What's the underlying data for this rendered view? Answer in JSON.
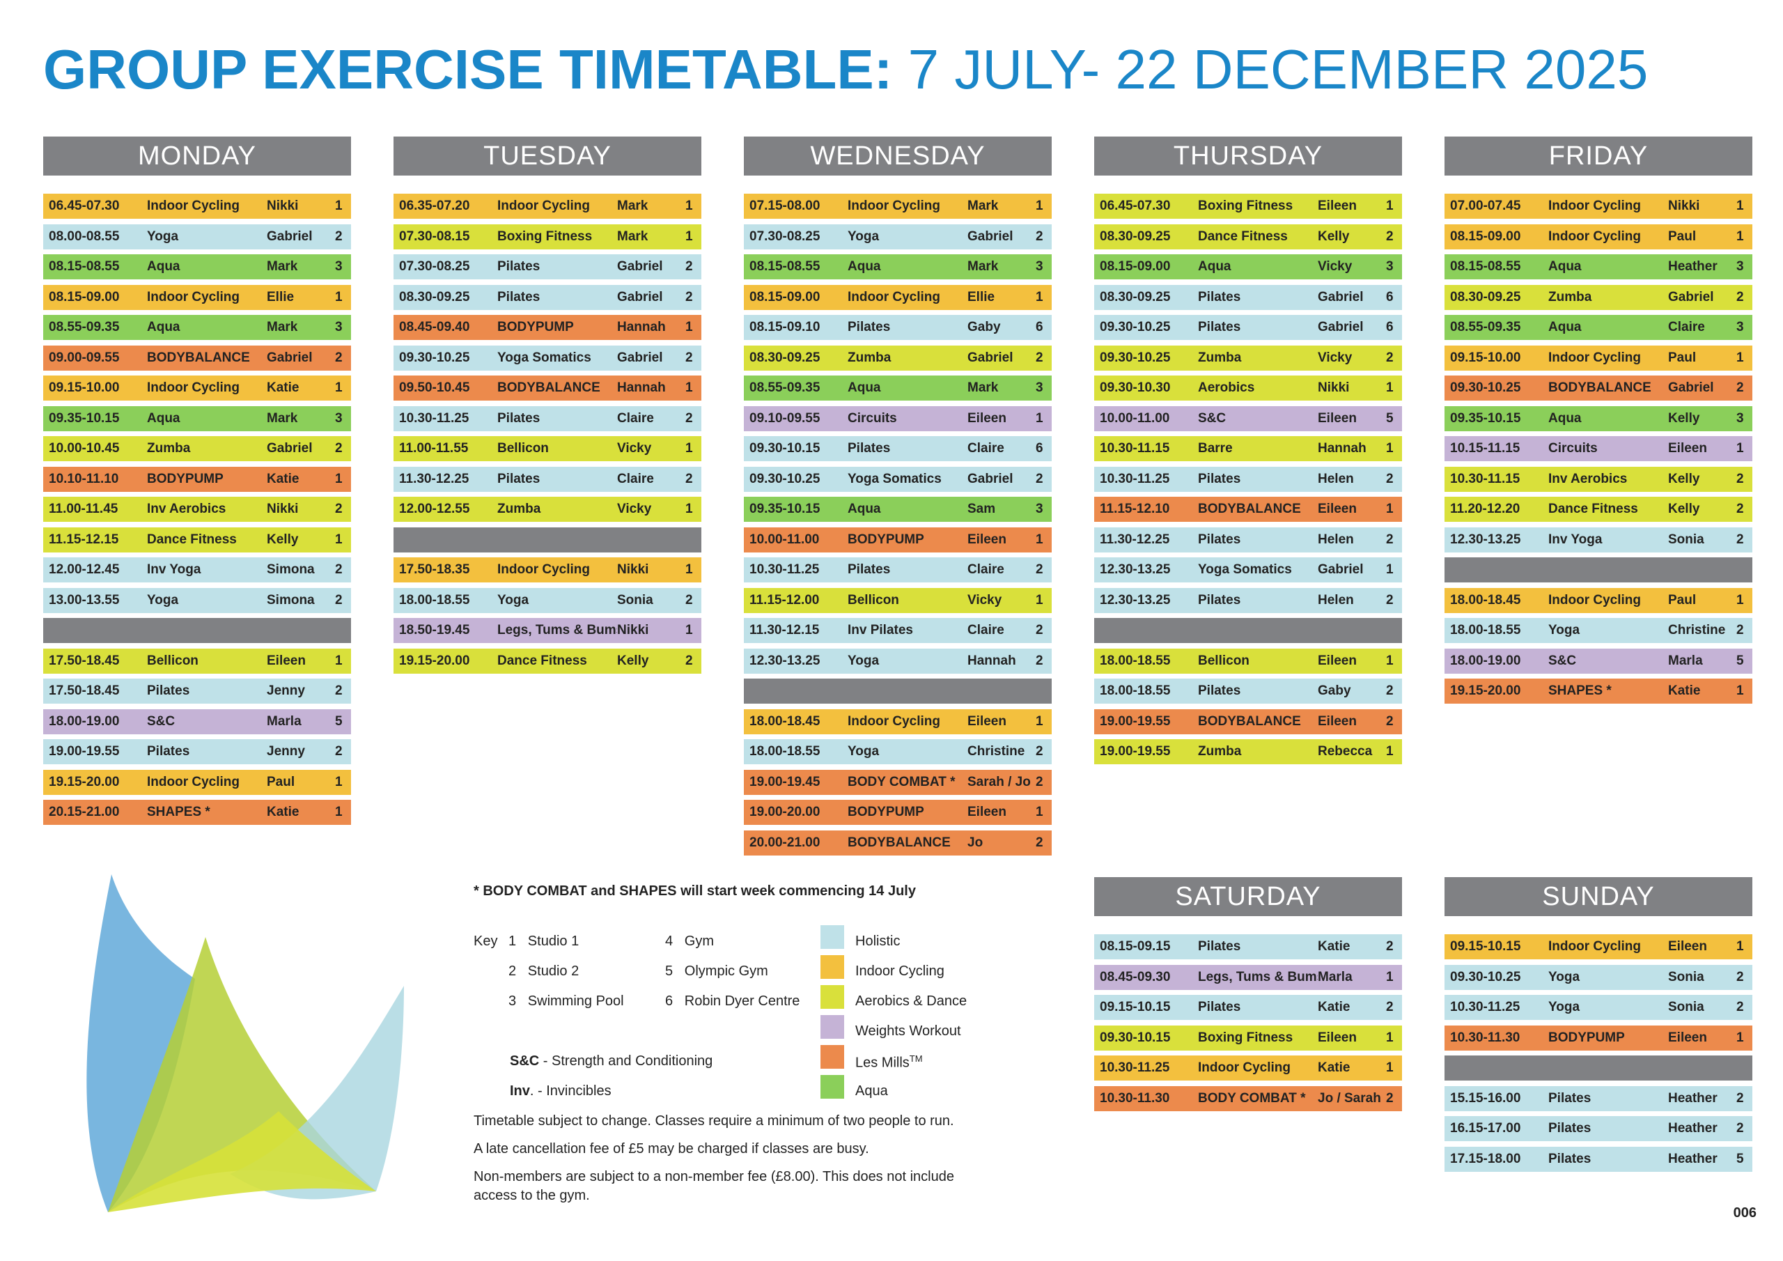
{
  "title": {
    "bold": "GROUP EXERCISE TIMETABLE:",
    "light": " 7 JULY- 22 DECEMBER 2025"
  },
  "categories": {
    "holistic": "#bfe1e8",
    "cycling": "#f3c03e",
    "aerobics": "#d9e03b",
    "weights": "#c5b3d6",
    "lesmills": "#ec8a4c",
    "aqua": "#8bcf5a",
    "header": "#808184"
  },
  "days": {
    "monday": {
      "name": "MONDAY",
      "rows": [
        {
          "time": "06.45-07.30",
          "cls": "Indoor Cycling",
          "instructor": "Nikki",
          "studio": "1",
          "cat": "cycling"
        },
        {
          "time": "08.00-08.55",
          "cls": "Yoga",
          "instructor": "Gabriel",
          "studio": "2",
          "cat": "holistic"
        },
        {
          "time": "08.15-08.55",
          "cls": "Aqua",
          "instructor": "Mark",
          "studio": "3",
          "cat": "aqua"
        },
        {
          "time": "08.15-09.00",
          "cls": "Indoor Cycling",
          "instructor": "Ellie",
          "studio": "1",
          "cat": "cycling"
        },
        {
          "time": "08.55-09.35",
          "cls": "Aqua",
          "instructor": "Mark",
          "studio": "3",
          "cat": "aqua"
        },
        {
          "time": "09.00-09.55",
          "cls": "BODYBALANCE",
          "instructor": "Gabriel",
          "studio": "2",
          "cat": "lesmills"
        },
        {
          "time": "09.15-10.00",
          "cls": "Indoor Cycling",
          "instructor": "Katie",
          "studio": "1",
          "cat": "cycling"
        },
        {
          "time": "09.35-10.15",
          "cls": "Aqua",
          "instructor": "Mark",
          "studio": "3",
          "cat": "aqua"
        },
        {
          "time": "10.00-10.45",
          "cls": "Zumba",
          "instructor": "Gabriel",
          "studio": "2",
          "cat": "aerobics"
        },
        {
          "time": "10.10-11.10",
          "cls": "BODYPUMP",
          "instructor": "Katie",
          "studio": "1",
          "cat": "lesmills"
        },
        {
          "time": "11.00-11.45",
          "cls": "Inv Aerobics",
          "instructor": "Nikki",
          "studio": "2",
          "cat": "aerobics"
        },
        {
          "time": "11.15-12.15",
          "cls": "Dance Fitness",
          "instructor": "Kelly",
          "studio": "1",
          "cat": "aerobics"
        },
        {
          "time": "12.00-12.45",
          "cls": "Inv Yoga",
          "instructor": "Simona",
          "studio": "2",
          "cat": "holistic"
        },
        {
          "time": "13.00-13.55",
          "cls": "Yoga",
          "instructor": "Simona",
          "studio": "2",
          "cat": "holistic"
        },
        {
          "gap": true
        },
        {
          "time": "17.50-18.45",
          "cls": "Bellicon",
          "instructor": "Eileen",
          "studio": "1",
          "cat": "aerobics"
        },
        {
          "time": "17.50-18.45",
          "cls": "Pilates",
          "instructor": "Jenny",
          "studio": "2",
          "cat": "holistic"
        },
        {
          "time": "18.00-19.00",
          "cls": "S&C",
          "instructor": "Marla",
          "studio": "5",
          "cat": "weights"
        },
        {
          "time": "19.00-19.55",
          "cls": "Pilates",
          "instructor": "Jenny",
          "studio": "2",
          "cat": "holistic"
        },
        {
          "time": "19.15-20.00",
          "cls": "Indoor Cycling",
          "instructor": "Paul",
          "studio": "1",
          "cat": "cycling"
        },
        {
          "time": "20.15-21.00",
          "cls": "SHAPES *",
          "instructor": "Katie",
          "studio": "1",
          "cat": "lesmills"
        }
      ]
    },
    "tuesday": {
      "name": "TUESDAY",
      "rows": [
        {
          "time": "06.35-07.20",
          "cls": "Indoor Cycling",
          "instructor": "Mark",
          "studio": "1",
          "cat": "cycling"
        },
        {
          "time": "07.30-08.15",
          "cls": "Boxing Fitness",
          "instructor": "Mark",
          "studio": "1",
          "cat": "aerobics"
        },
        {
          "time": "07.30-08.25",
          "cls": "Pilates",
          "instructor": "Gabriel",
          "studio": "2",
          "cat": "holistic"
        },
        {
          "time": "08.30-09.25",
          "cls": "Pilates",
          "instructor": "Gabriel",
          "studio": "2",
          "cat": "holistic"
        },
        {
          "time": "08.45-09.40",
          "cls": "BODYPUMP",
          "instructor": "Hannah",
          "studio": "1",
          "cat": "lesmills"
        },
        {
          "time": "09.30-10.25",
          "cls": "Yoga Somatics",
          "instructor": "Gabriel",
          "studio": "2",
          "cat": "holistic"
        },
        {
          "time": "09.50-10.45",
          "cls": "BODYBALANCE",
          "instructor": "Hannah",
          "studio": "1",
          "cat": "lesmills"
        },
        {
          "time": "10.30-11.25",
          "cls": "Pilates",
          "instructor": "Claire",
          "studio": "2",
          "cat": "holistic"
        },
        {
          "time": "11.00-11.55",
          "cls": "Bellicon",
          "instructor": "Vicky",
          "studio": "1",
          "cat": "aerobics"
        },
        {
          "time": "11.30-12.25",
          "cls": "Pilates",
          "instructor": "Claire",
          "studio": "2",
          "cat": "holistic"
        },
        {
          "time": "12.00-12.55",
          "cls": "Zumba",
          "instructor": "Vicky",
          "studio": "1",
          "cat": "aerobics"
        },
        {
          "gap": true
        },
        {
          "time": "17.50-18.35",
          "cls": "Indoor Cycling",
          "instructor": "Nikki",
          "studio": "1",
          "cat": "cycling"
        },
        {
          "time": "18.00-18.55",
          "cls": "Yoga",
          "instructor": "Sonia",
          "studio": "2",
          "cat": "holistic"
        },
        {
          "time": "18.50-19.45",
          "cls": "Legs, Tums & Bums",
          "instructor": "Nikki",
          "studio": "1",
          "cat": "weights"
        },
        {
          "time": "19.15-20.00",
          "cls": "Dance Fitness",
          "instructor": "Kelly",
          "studio": "2",
          "cat": "aerobics"
        }
      ]
    },
    "wednesday": {
      "name": "WEDNESDAY",
      "rows": [
        {
          "time": "07.15-08.00",
          "cls": "Indoor Cycling",
          "instructor": "Mark",
          "studio": "1",
          "cat": "cycling"
        },
        {
          "time": "07.30-08.25",
          "cls": "Yoga",
          "instructor": "Gabriel",
          "studio": "2",
          "cat": "holistic"
        },
        {
          "time": "08.15-08.55",
          "cls": "Aqua",
          "instructor": "Mark",
          "studio": "3",
          "cat": "aqua"
        },
        {
          "time": "08.15-09.00",
          "cls": "Indoor Cycling",
          "instructor": "Ellie",
          "studio": "1",
          "cat": "cycling"
        },
        {
          "time": "08.15-09.10",
          "cls": "Pilates",
          "instructor": "Gaby",
          "studio": "6",
          "cat": "holistic"
        },
        {
          "time": "08.30-09.25",
          "cls": "Zumba",
          "instructor": "Gabriel",
          "studio": "2",
          "cat": "aerobics"
        },
        {
          "time": "08.55-09.35",
          "cls": "Aqua",
          "instructor": "Mark",
          "studio": "3",
          "cat": "aqua"
        },
        {
          "time": "09.10-09.55",
          "cls": "Circuits",
          "instructor": "Eileen",
          "studio": "1",
          "cat": "weights"
        },
        {
          "time": "09.30-10.15",
          "cls": "Pilates",
          "instructor": "Claire",
          "studio": "6",
          "cat": "holistic"
        },
        {
          "time": "09.30-10.25",
          "cls": "Yoga Somatics",
          "instructor": "Gabriel",
          "studio": "2",
          "cat": "holistic"
        },
        {
          "time": "09.35-10.15",
          "cls": "Aqua",
          "instructor": "Sam",
          "studio": "3",
          "cat": "aqua"
        },
        {
          "time": "10.00-11.00",
          "cls": "BODYPUMP",
          "instructor": "Eileen",
          "studio": "1",
          "cat": "lesmills"
        },
        {
          "time": "10.30-11.25",
          "cls": "Pilates",
          "instructor": "Claire",
          "studio": "2",
          "cat": "holistic"
        },
        {
          "time": "11.15-12.00",
          "cls": "Bellicon",
          "instructor": "Vicky",
          "studio": "1",
          "cat": "aerobics"
        },
        {
          "time": "11.30-12.15",
          "cls": "Inv Pilates",
          "instructor": "Claire",
          "studio": "2",
          "cat": "holistic"
        },
        {
          "time": "12.30-13.25",
          "cls": "Yoga",
          "instructor": "Hannah",
          "studio": "2",
          "cat": "holistic"
        },
        {
          "gap": true
        },
        {
          "time": "18.00-18.45",
          "cls": "Indoor Cycling",
          "instructor": "Eileen",
          "studio": "1",
          "cat": "cycling"
        },
        {
          "time": "18.00-18.55",
          "cls": "Yoga",
          "instructor": "Christine",
          "studio": "2",
          "cat": "holistic"
        },
        {
          "time": "19.00-19.45",
          "cls": "BODY COMBAT *",
          "instructor": "Sarah / Jo",
          "studio": "2",
          "cat": "lesmills"
        },
        {
          "time": "19.00-20.00",
          "cls": "BODYPUMP",
          "instructor": "Eileen",
          "studio": "1",
          "cat": "lesmills"
        },
        {
          "time": "20.00-21.00",
          "cls": "BODYBALANCE",
          "instructor": "Jo",
          "studio": "2",
          "cat": "lesmills"
        }
      ]
    },
    "thursday": {
      "name": "THURSDAY",
      "rows": [
        {
          "time": "06.45-07.30",
          "cls": "Boxing Fitness",
          "instructor": "Eileen",
          "studio": "1",
          "cat": "aerobics"
        },
        {
          "time": "08.30-09.25",
          "cls": "Dance Fitness",
          "instructor": "Kelly",
          "studio": "2",
          "cat": "aerobics"
        },
        {
          "time": "08.15-09.00",
          "cls": "Aqua",
          "instructor": "Vicky",
          "studio": "3",
          "cat": "aqua"
        },
        {
          "time": "08.30-09.25",
          "cls": "Pilates",
          "instructor": "Gabriel",
          "studio": "6",
          "cat": "holistic"
        },
        {
          "time": "09.30-10.25",
          "cls": "Pilates",
          "instructor": "Gabriel",
          "studio": "6",
          "cat": "holistic"
        },
        {
          "time": "09.30-10.25",
          "cls": "Zumba",
          "instructor": "Vicky",
          "studio": "2",
          "cat": "aerobics"
        },
        {
          "time": "09.30-10.30",
          "cls": "Aerobics",
          "instructor": "Nikki",
          "studio": "1",
          "cat": "aerobics"
        },
        {
          "time": "10.00-11.00",
          "cls": "S&C",
          "instructor": "Eileen",
          "studio": "5",
          "cat": "weights"
        },
        {
          "time": "10.30-11.15",
          "cls": "Barre",
          "instructor": "Hannah",
          "studio": "1",
          "cat": "aerobics"
        },
        {
          "time": "10.30-11.25",
          "cls": "Pilates",
          "instructor": "Helen",
          "studio": "2",
          "cat": "holistic"
        },
        {
          "time": "11.15-12.10",
          "cls": "BODYBALANCE",
          "instructor": "Eileen",
          "studio": "1",
          "cat": "lesmills"
        },
        {
          "time": "11.30-12.25",
          "cls": "Pilates",
          "instructor": "Helen",
          "studio": "2",
          "cat": "holistic"
        },
        {
          "time": "12.30-13.25",
          "cls": "Yoga Somatics",
          "instructor": "Gabriel",
          "studio": "1",
          "cat": "holistic"
        },
        {
          "time": "12.30-13.25",
          "cls": "Pilates",
          "instructor": "Helen",
          "studio": "2",
          "cat": "holistic"
        },
        {
          "gap": true
        },
        {
          "time": "18.00-18.55",
          "cls": "Bellicon",
          "instructor": "Eileen",
          "studio": "1",
          "cat": "aerobics"
        },
        {
          "time": "18.00-18.55",
          "cls": "Pilates",
          "instructor": "Gaby",
          "studio": "2",
          "cat": "holistic"
        },
        {
          "time": "19.00-19.55",
          "cls": "BODYBALANCE",
          "instructor": "Eileen",
          "studio": "2",
          "cat": "lesmills"
        },
        {
          "time": "19.00-19.55",
          "cls": "Zumba",
          "instructor": "Rebecca",
          "studio": "1",
          "cat": "aerobics"
        }
      ]
    },
    "friday": {
      "name": "FRIDAY",
      "rows": [
        {
          "time": "07.00-07.45",
          "cls": "Indoor Cycling",
          "instructor": "Nikki",
          "studio": "1",
          "cat": "cycling"
        },
        {
          "time": "08.15-09.00",
          "cls": "Indoor Cycling",
          "instructor": "Paul",
          "studio": "1",
          "cat": "cycling"
        },
        {
          "time": "08.15-08.55",
          "cls": "Aqua",
          "instructor": "Heather",
          "studio": "3",
          "cat": "aqua"
        },
        {
          "time": "08.30-09.25",
          "cls": "Zumba",
          "instructor": "Gabriel",
          "studio": "2",
          "cat": "aerobics"
        },
        {
          "time": "08.55-09.35",
          "cls": "Aqua",
          "instructor": "Claire",
          "studio": "3",
          "cat": "aqua"
        },
        {
          "time": "09.15-10.00",
          "cls": "Indoor Cycling",
          "instructor": "Paul",
          "studio": "1",
          "cat": "cycling"
        },
        {
          "time": "09.30-10.25",
          "cls": "BODYBALANCE",
          "instructor": "Gabriel",
          "studio": "2",
          "cat": "lesmills"
        },
        {
          "time": "09.35-10.15",
          "cls": "Aqua",
          "instructor": "Kelly",
          "studio": "3",
          "cat": "aqua"
        },
        {
          "time": "10.15-11.15",
          "cls": "Circuits",
          "instructor": "Eileen",
          "studio": "1",
          "cat": "weights"
        },
        {
          "time": "10.30-11.15",
          "cls": "Inv Aerobics",
          "instructor": "Kelly",
          "studio": "2",
          "cat": "aerobics"
        },
        {
          "time": "11.20-12.20",
          "cls": "Dance Fitness",
          "instructor": "Kelly",
          "studio": "2",
          "cat": "aerobics"
        },
        {
          "time": "12.30-13.25",
          "cls": "Inv Yoga",
          "instructor": "Sonia",
          "studio": "2",
          "cat": "holistic"
        },
        {
          "gap": true
        },
        {
          "time": "18.00-18.45",
          "cls": "Indoor Cycling",
          "instructor": "Paul",
          "studio": "1",
          "cat": "cycling"
        },
        {
          "time": "18.00-18.55",
          "cls": "Yoga",
          "instructor": "Christine",
          "studio": "2",
          "cat": "holistic"
        },
        {
          "time": "18.00-19.00",
          "cls": "S&C",
          "instructor": "Marla",
          "studio": "5",
          "cat": "weights"
        },
        {
          "time": "19.15-20.00",
          "cls": "SHAPES *",
          "instructor": "Katie",
          "studio": "1",
          "cat": "lesmills"
        }
      ]
    },
    "saturday": {
      "name": "SATURDAY",
      "rows": [
        {
          "time": "08.15-09.15",
          "cls": "Pilates",
          "instructor": "Katie",
          "studio": "2",
          "cat": "holistic"
        },
        {
          "time": "08.45-09.30",
          "cls": "Legs, Tums & Bums",
          "instructor": "Marla",
          "studio": "1",
          "cat": "weights"
        },
        {
          "time": "09.15-10.15",
          "cls": "Pilates",
          "instructor": "Katie",
          "studio": "2",
          "cat": "holistic"
        },
        {
          "time": "09.30-10.15",
          "cls": "Boxing Fitness",
          "instructor": "Eileen",
          "studio": "1",
          "cat": "aerobics"
        },
        {
          "time": "10.30-11.25",
          "cls": "Indoor Cycling",
          "instructor": "Katie",
          "studio": "1",
          "cat": "cycling"
        },
        {
          "time": "10.30-11.30",
          "cls": "BODY COMBAT *",
          "instructor": "Jo / Sarah",
          "studio": "2",
          "cat": "lesmills"
        }
      ]
    },
    "sunday": {
      "name": "SUNDAY",
      "rows": [
        {
          "time": "09.15-10.15",
          "cls": "Indoor Cycling",
          "instructor": "Eileen",
          "studio": "1",
          "cat": "cycling"
        },
        {
          "time": "09.30-10.25",
          "cls": "Yoga",
          "instructor": "Sonia",
          "studio": "2",
          "cat": "holistic"
        },
        {
          "time": "10.30-11.25",
          "cls": "Yoga",
          "instructor": "Sonia",
          "studio": "2",
          "cat": "holistic"
        },
        {
          "time": "10.30-11.30",
          "cls": "BODYPUMP",
          "instructor": "Eileen",
          "studio": "1",
          "cat": "lesmills"
        },
        {
          "gap": true
        },
        {
          "time": "15.15-16.00",
          "cls": "Pilates",
          "instructor": "Heather",
          "studio": "2",
          "cat": "holistic"
        },
        {
          "time": "16.15-17.00",
          "cls": "Pilates",
          "instructor": "Heather",
          "studio": "2",
          "cat": "holistic"
        },
        {
          "time": "17.15-18.00",
          "cls": "Pilates",
          "instructor": "Heather",
          "studio": "5",
          "cat": "holistic"
        }
      ]
    }
  },
  "notes": {
    "footnote": "* BODY COMBAT and SHAPES will start week commencing 14 July",
    "key_label": "Key",
    "studios": [
      {
        "num": "1",
        "name": "Studio 1"
      },
      {
        "num": "2",
        "name": "Studio 2"
      },
      {
        "num": "3",
        "name": "Swimming Pool"
      },
      {
        "num": "4",
        "name": "Gym"
      },
      {
        "num": "5",
        "name": "Olympic Gym"
      },
      {
        "num": "6",
        "name": "Robin Dyer Centre"
      }
    ],
    "sc_abbr": "S&C",
    "sc_full": " - Strength and Conditioning",
    "inv_abbr": "Inv",
    "inv_full": ". - Invincibles",
    "line1": "Timetable subject to change. Classes require a minimum of two people to run.",
    "line2": "A late cancellation fee of £5 may be charged if classes are busy.",
    "line3a": "Non-members are subject to a non-member fee (£8.00). This does not include",
    "line3b": "access to the gym."
  },
  "legend": [
    {
      "label": "Holistic",
      "cat": "holistic"
    },
    {
      "label": "Indoor Cycling",
      "cat": "cycling"
    },
    {
      "label": "Aerobics & Dance",
      "cat": "aerobics"
    },
    {
      "label": "Weights Workout",
      "cat": "weights"
    },
    {
      "label": "Les Mills",
      "sup": "TM",
      "cat": "lesmills"
    },
    {
      "label": "Aqua",
      "cat": "aqua"
    }
  ],
  "page_number": "006"
}
